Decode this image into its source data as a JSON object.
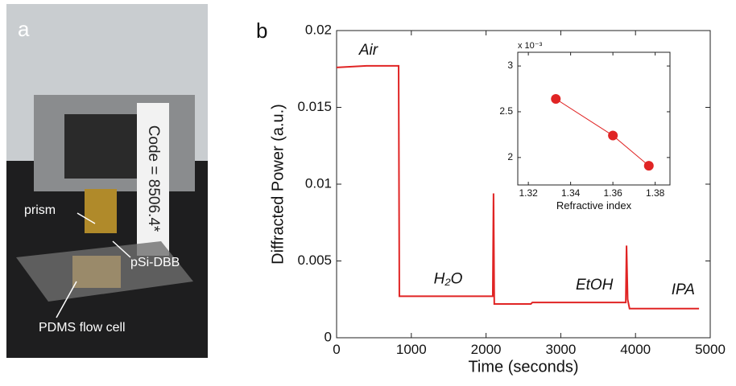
{
  "panel_a": {
    "label": "a",
    "code": "Code = 8506.4*",
    "prism": "prism",
    "psi": "pSi-DBB",
    "cell": "PDMS flow cell"
  },
  "chart_data": [
    {
      "type": "line",
      "panel_label": "b",
      "xlabel": "Time (seconds)",
      "ylabel": "Diffracted Power (a.u.)",
      "xlim": [
        0,
        5000
      ],
      "xticks": [
        0,
        1000,
        2000,
        3000,
        4000,
        5000
      ],
      "ylim": [
        0,
        0.02
      ],
      "yticks": [
        0,
        0.005,
        0.01,
        0.015,
        0.02
      ],
      "series": [
        {
          "color": "#e02424",
          "x": [
            0,
            400,
            830,
            840,
            2090,
            2100,
            2110,
            2600,
            2620,
            3870,
            3880,
            3895,
            3920,
            4850
          ],
          "values": [
            0.0176,
            0.0177,
            0.0177,
            0.0027,
            0.0027,
            0.0094,
            0.0022,
            0.0022,
            0.0023,
            0.0023,
            0.006,
            0.0025,
            0.0019,
            0.0019
          ]
        }
      ],
      "annotations": [
        {
          "text": "Air",
          "x": 300,
          "y": 0.0187
        },
        {
          "text": "H₂O",
          "x": 1300,
          "y": 0.0038
        },
        {
          "text": "EtOH",
          "x": 3200,
          "y": 0.0034
        },
        {
          "text": "IPA",
          "x": 4480,
          "y": 0.0031
        }
      ]
    },
    {
      "type": "line",
      "marker": "circle",
      "xlabel": "Refractive index",
      "multiplier": "x 10⁻³",
      "xlim": [
        1.315,
        1.387
      ],
      "xticks": [
        1.32,
        1.34,
        1.36,
        1.38
      ],
      "ylim": [
        1.7,
        3.15
      ],
      "yticks": [
        2,
        2.5,
        3
      ],
      "series": [
        {
          "color": "#e02424",
          "x": [
            1.333,
            1.36,
            1.377
          ],
          "values": [
            2.64,
            2.24,
            1.91
          ]
        }
      ]
    }
  ]
}
